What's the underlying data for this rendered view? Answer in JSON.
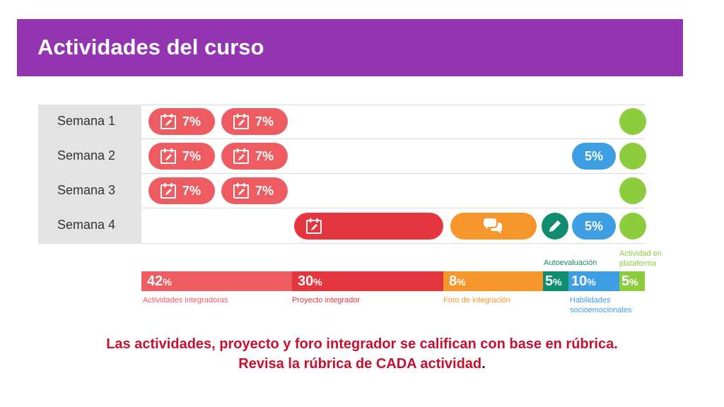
{
  "header": {
    "title": "Actividades del curso"
  },
  "colors": {
    "purple": "#9335b0",
    "activity_red": "#ee5c62",
    "project_red": "#e5363f",
    "forum_orange": "#f6952a",
    "self_eval_teal": "#108c6e",
    "skills_blue": "#3d9ee3",
    "platform_green": "#8dcc3d",
    "footer_red": "#c8102e"
  },
  "weeks": [
    {
      "label": "Semana 1",
      "activities": [
        "7%",
        "7%"
      ],
      "skills": ""
    },
    {
      "label": "Semana 2",
      "activities": [
        "7%",
        "7%"
      ],
      "skills": "5%"
    },
    {
      "label": "Semana 3",
      "activities": [
        "7%",
        "7%"
      ],
      "skills": ""
    },
    {
      "label": "Semana 4",
      "activities": [],
      "skills": "5%"
    }
  ],
  "icons": {
    "activity": "calendar-pencil-icon",
    "project": "calendar-pencil-icon",
    "forum": "speech-bubbles-icon",
    "self_eval": "pencil-icon"
  },
  "legend_top": {
    "autoevaluacion": "Autoevaluación",
    "plataforma_1": "Actividad en",
    "plataforma_2": "plataforma"
  },
  "summary_bar": {
    "segments": [
      {
        "value": "42",
        "caption": "Actividades integradoras"
      },
      {
        "value": "30",
        "caption": "Proyecto integrador"
      },
      {
        "value": "8",
        "caption": "Foro de integración"
      },
      {
        "value": "5",
        "caption": ""
      },
      {
        "value": "10",
        "caption_1": "Habilidades",
        "caption_2": "socioemocionales"
      },
      {
        "value": "5",
        "caption": ""
      }
    ],
    "percent_sign": "%"
  },
  "footer": {
    "line1": "Las actividades, proyecto y foro integrador se califican con base en rúbrica.",
    "line2": "Revisa la rúbrica de CADA actividad",
    "line2_end": "."
  }
}
